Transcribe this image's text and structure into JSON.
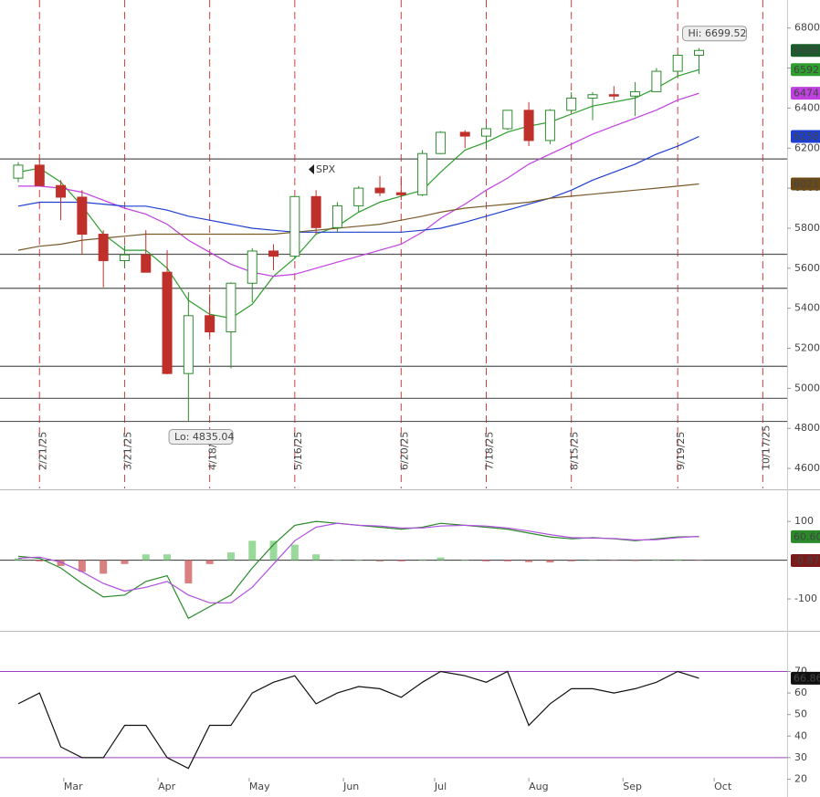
{
  "chart_data": [
    {
      "type": "candlestick",
      "title": "SPX",
      "x": [
        "2/14/25",
        "2/21/25",
        "2/28/25",
        "3/7/25",
        "3/14/25",
        "3/21/25",
        "3/28/25",
        "4/4/25",
        "4/11/25",
        "4/18/25",
        "4/25/25",
        "5/2/25",
        "5/9/25",
        "5/16/25",
        "5/23/25",
        "5/30/25",
        "6/6/25",
        "6/13/25",
        "6/20/25",
        "6/27/25",
        "7/3/25",
        "7/11/25",
        "7/18/25",
        "7/25/25",
        "8/1/25",
        "8/8/25",
        "8/15/25",
        "8/22/25",
        "8/29/25",
        "9/5/25",
        "9/12/25",
        "9/19/25",
        "9/26/25"
      ],
      "open": [
        6050,
        6115,
        6013,
        5955,
        5770,
        5638,
        5667,
        5580,
        5074,
        5363,
        5282,
        5525,
        5686,
        5660,
        5958,
        5803,
        5912,
        6000,
        5977,
        5967,
        6173,
        6279,
        6260,
        6297,
        6389,
        6238,
        6389,
        6450,
        6467,
        6460,
        6482,
        6584,
        6664
      ],
      "high": [
        6130,
        6147,
        6040,
        5990,
        5790,
        5715,
        5790,
        5690,
        5480,
        5470,
        5530,
        5700,
        5720,
        5960,
        5990,
        5930,
        6010,
        6060,
        6060,
        6190,
        6285,
        6290,
        6315,
        6390,
        6430,
        6395,
        6480,
        6480,
        6510,
        6530,
        6600,
        6670,
        6699.52
      ],
      "low": [
        6030,
        6010,
        5840,
        5670,
        5505,
        5600,
        5580,
        5070,
        4835.04,
        5260,
        5100,
        5430,
        5590,
        5650,
        5770,
        5780,
        5880,
        5960,
        5940,
        5960,
        6170,
        6200,
        6200,
        6290,
        6210,
        6220,
        6380,
        6340,
        6440,
        6360,
        6480,
        6560,
        6570
      ],
      "close": [
        6115,
        6013,
        5955,
        5770,
        5638,
        5667,
        5580,
        5074,
        5363,
        5282,
        5525,
        5686,
        5660,
        5958,
        5803,
        5912,
        6000,
        5977,
        5967,
        6173,
        6279,
        6260,
        6297,
        6389,
        6238,
        6389,
        6450,
        6467,
        6460,
        6482,
        6584,
        6664,
        6688
      ],
      "up_color": "#2e8b2e",
      "down_color": "#c0302b",
      "series": [
        {
          "color": "#2e9e2e",
          "values": [
            6080,
            6100,
            6030,
            5910,
            5770,
            5690,
            5690,
            5600,
            5440,
            5370,
            5350,
            5420,
            5560,
            5650,
            5770,
            5810,
            5880,
            5930,
            5960,
            5990,
            6080,
            6190,
            6230,
            6280,
            6310,
            6330,
            6370,
            6410,
            6430,
            6450,
            6500,
            6560,
            6592
          ]
        },
        {
          "color": "#c040e0",
          "values": [
            6010,
            6010,
            6000,
            5980,
            5940,
            5900,
            5870,
            5820,
            5740,
            5680,
            5620,
            5580,
            5560,
            5570,
            5600,
            5630,
            5660,
            5690,
            5720,
            5780,
            5850,
            5920,
            5990,
            6050,
            6120,
            6170,
            6220,
            6270,
            6310,
            6350,
            6390,
            6440,
            6474
          ]
        },
        {
          "color": "#1f3fcf",
          "values": [
            5910,
            5930,
            5930,
            5930,
            5920,
            5910,
            5910,
            5890,
            5860,
            5840,
            5820,
            5800,
            5790,
            5780,
            5780,
            5780,
            5780,
            5780,
            5780,
            5790,
            5800,
            5830,
            5860,
            5890,
            5920,
            5950,
            5990,
            6040,
            6080,
            6120,
            6170,
            6210,
            6258
          ]
        },
        {
          "color": "#7a5a2a",
          "values": [
            5690,
            5710,
            5720,
            5740,
            5750,
            5760,
            5770,
            5770,
            5770,
            5770,
            5770,
            5770,
            5770,
            5780,
            5790,
            5800,
            5810,
            5820,
            5840,
            5860,
            5880,
            5900,
            5910,
            5920,
            5930,
            5950,
            5960,
            5970,
            5980,
            5990,
            6000,
            6010,
            6021
          ]
        }
      ],
      "value_tags": [
        {
          "value": 6688,
          "label": "6688.",
          "color": "#1a5c2a"
        },
        {
          "value": 6592,
          "label": "6592.",
          "color": "#2e9e2e"
        },
        {
          "value": 6474,
          "label": "6474.",
          "color": "#c040e0"
        },
        {
          "value": 6258,
          "label": "6258.",
          "color": "#1f3fcf"
        },
        {
          "value": 6021,
          "label": "6021.",
          "color": "#6b4a1a"
        }
      ],
      "hlines": [
        6146,
        5670,
        5500,
        5110,
        4950,
        4835
      ],
      "annotations": [
        {
          "text": "Hi: 6699.52",
          "x": "9/23/25",
          "y": 6699.52
        },
        {
          "text": "Lo: 4835.04",
          "x": "4/7/25",
          "y": 4835.04
        }
      ],
      "xlim": [
        "2/8/25",
        "10/25/25"
      ],
      "xticks": [
        "2/21/25",
        "3/21/25",
        "4/18/25",
        "5/16/25",
        "6/20/25",
        "7/18/25",
        "8/15/25",
        "9/19/25",
        "10/17/25"
      ],
      "ylim": [
        4500,
        6940
      ],
      "yticks": [
        4600,
        4800,
        5000,
        5200,
        5400,
        5600,
        5800,
        6000,
        6200,
        6400,
        6600,
        6800
      ]
    },
    {
      "type": "macd",
      "series": [
        {
          "color": "#2a8a2a",
          "values": [
            10,
            5,
            -20,
            -60,
            -95,
            -90,
            -55,
            -40,
            -150,
            -120,
            -90,
            -20,
            40,
            90,
            100,
            95,
            90,
            85,
            80,
            85,
            95,
            90,
            85,
            80,
            70,
            60,
            55,
            58,
            55,
            50,
            55,
            60,
            60.6
          ]
        },
        {
          "color": "#b050e0",
          "values": [
            5,
            8,
            -5,
            -30,
            -60,
            -80,
            -70,
            -55,
            -90,
            -110,
            -110,
            -70,
            -10,
            50,
            85,
            95,
            90,
            88,
            83,
            83,
            88,
            90,
            88,
            83,
            75,
            66,
            58,
            57,
            56,
            52,
            53,
            58,
            61.5
          ]
        }
      ],
      "histogram": [
        5,
        -3,
        -15,
        -30,
        -35,
        -10,
        15,
        15,
        -60,
        -10,
        20,
        50,
        50,
        40,
        15,
        0,
        0,
        -3,
        -3,
        2,
        7,
        0,
        -3,
        -3,
        -5,
        -6,
        -3,
        1,
        -1,
        -2,
        2,
        2,
        -0.87
      ],
      "value_tags": [
        {
          "value": 60.6,
          "label": "60.60",
          "color": "#2a8a2a"
        },
        {
          "value": -0.87,
          "label": "-0.870",
          "color": "#7a1a1a"
        }
      ],
      "ylim": [
        -180,
        178
      ],
      "yticks": [
        -100,
        100
      ]
    },
    {
      "type": "rsi",
      "values": [
        55,
        60,
        35,
        30,
        30,
        45,
        45,
        30,
        25,
        45,
        45,
        60,
        65,
        68,
        55,
        60,
        63,
        62,
        58,
        65,
        70,
        68,
        65,
        70,
        45,
        55,
        62,
        62,
        60,
        62,
        65,
        70,
        66.86
      ],
      "color": "#111111",
      "hlines": [
        70,
        30
      ],
      "value_tags": [
        {
          "value": 66.86,
          "label": "66.86",
          "color": "#111111"
        }
      ],
      "ylim": [
        13,
        88
      ],
      "yticks": [
        20,
        30,
        40,
        50,
        60,
        70
      ],
      "xticks": [
        {
          "value": "3/1/25",
          "label": "Mar"
        },
        {
          "value": "4/1/25",
          "label": "Apr"
        },
        {
          "value": "5/1/25",
          "label": "May"
        },
        {
          "value": "6/1/25",
          "label": "Jun"
        },
        {
          "value": "7/1/25",
          "label": "Jul"
        },
        {
          "value": "8/1/25",
          "label": "Aug"
        },
        {
          "value": "9/1/25",
          "label": "Sep"
        },
        {
          "value": "10/1/25",
          "label": "Oct"
        }
      ]
    }
  ]
}
